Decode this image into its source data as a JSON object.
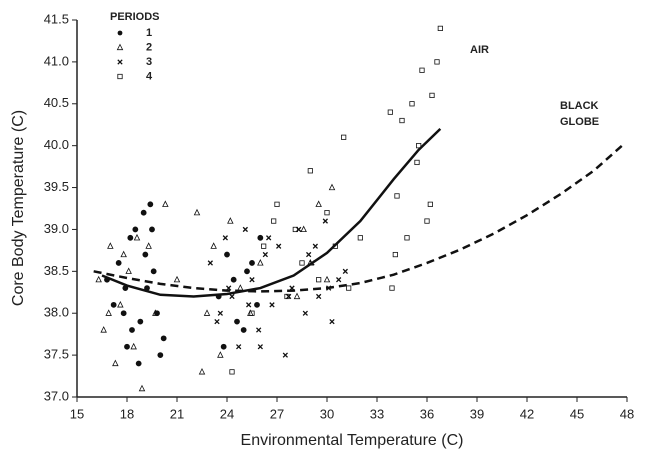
{
  "chart_data": {
    "type": "scatter",
    "x_label": "Environmental Temperature (C)",
    "y_label": "Core Body Temperature (C)",
    "legend_title": "PERIODS",
    "legend": "upper-left",
    "xlim": [
      15,
      48
    ],
    "ylim": [
      37.0,
      41.5
    ],
    "xticks": [
      15,
      18,
      21,
      24,
      27,
      30,
      33,
      36,
      39,
      42,
      45,
      48
    ],
    "yticks": [
      {
        "value": 37,
        "label": "37.0"
      },
      37.5,
      {
        "value": 38,
        "label": "38.0"
      },
      38.5,
      {
        "value": 39,
        "label": "39.0"
      },
      39.5,
      {
        "value": 40,
        "label": "40.0"
      },
      40.5,
      {
        "value": 41,
        "label": "41.0"
      },
      41.5
    ],
    "series": [
      {
        "name": "1",
        "marker": "circle",
        "color": "#111",
        "x": [
          16.8,
          17.2,
          17.5,
          17.8,
          18.0,
          18.2,
          18.5,
          18.7,
          19.0,
          19.2,
          19.4,
          19.6,
          19.8,
          20.0,
          18.3,
          17.9,
          19.1,
          18.8,
          19.5,
          20.2,
          23.5,
          24.0,
          24.6,
          25.2,
          25.8,
          26.0,
          23.8,
          24.4,
          25.0,
          25.5
        ],
        "y": [
          38.4,
          38.1,
          38.6,
          38.0,
          37.6,
          38.9,
          39.0,
          37.4,
          39.2,
          38.3,
          39.3,
          38.5,
          38.0,
          37.5,
          37.8,
          38.3,
          38.7,
          37.9,
          39.0,
          37.7,
          38.2,
          38.7,
          37.9,
          38.5,
          38.1,
          38.9,
          37.6,
          38.4,
          37.8,
          38.6
        ]
      },
      {
        "name": "2",
        "marker": "triangle",
        "color": "#111",
        "x": [
          16.3,
          16.6,
          17.0,
          17.3,
          17.6,
          17.8,
          18.1,
          18.4,
          18.9,
          19.3,
          19.7,
          20.3,
          21.0,
          22.2,
          22.5,
          22.8,
          23.2,
          23.6,
          24.2,
          24.8,
          25.4,
          26.0,
          28.2,
          28.6,
          29.0,
          29.5,
          30.0,
          30.3,
          16.9,
          18.6
        ],
        "y": [
          38.4,
          37.8,
          38.8,
          37.4,
          38.1,
          38.7,
          38.5,
          37.6,
          37.1,
          38.8,
          38.0,
          39.3,
          38.4,
          39.2,
          37.3,
          38.0,
          38.8,
          37.5,
          39.1,
          38.3,
          38.0,
          38.6,
          38.2,
          39.0,
          38.6,
          39.3,
          38.4,
          39.5,
          38.0,
          38.9
        ]
      },
      {
        "name": "3",
        "marker": "cross",
        "color": "#111",
        "x": [
          23.0,
          23.4,
          23.9,
          24.3,
          24.7,
          25.1,
          25.5,
          25.9,
          26.3,
          26.7,
          27.1,
          27.5,
          27.9,
          28.3,
          28.7,
          29.1,
          29.5,
          29.9,
          30.3,
          30.7,
          31.1,
          24.1,
          25.3,
          26.5,
          27.7,
          28.9,
          30.1,
          23.6,
          26.0,
          29.3
        ],
        "y": [
          38.6,
          37.9,
          38.9,
          38.2,
          37.6,
          39.0,
          38.4,
          37.8,
          38.7,
          38.1,
          38.8,
          37.5,
          38.3,
          39.0,
          38.0,
          38.6,
          38.2,
          39.1,
          37.9,
          38.4,
          38.5,
          38.3,
          38.1,
          38.9,
          38.2,
          38.7,
          38.3,
          38.0,
          37.6,
          38.8
        ]
      },
      {
        "name": "4",
        "marker": "square",
        "color": "#111",
        "x": [
          24.3,
          25.5,
          26.2,
          27.0,
          27.6,
          28.1,
          28.5,
          29.0,
          29.5,
          30.0,
          30.5,
          31.0,
          31.3,
          32.0,
          33.8,
          33.9,
          34.2,
          34.5,
          34.8,
          35.1,
          35.4,
          35.7,
          36.0,
          36.3,
          36.6,
          36.8,
          35.5,
          36.2,
          34.1,
          26.8
        ],
        "y": [
          37.3,
          38.0,
          38.8,
          39.3,
          38.2,
          39.0,
          38.6,
          39.7,
          38.4,
          39.2,
          38.8,
          40.1,
          38.3,
          38.9,
          40.4,
          38.3,
          39.4,
          40.3,
          38.9,
          40.5,
          39.8,
          40.9,
          39.1,
          40.6,
          41.0,
          41.4,
          40.0,
          39.3,
          38.7,
          39.1
        ]
      }
    ],
    "curves": [
      {
        "label": [
          "AIR"
        ],
        "style": "solid",
        "x": [
          16.5,
          18,
          20,
          22,
          24,
          26,
          28,
          30,
          32,
          34,
          35.5,
          36.8
        ],
        "y": [
          38.45,
          38.33,
          38.22,
          38.2,
          38.23,
          38.3,
          38.45,
          38.72,
          39.1,
          39.6,
          39.95,
          40.2
        ]
      },
      {
        "label": [
          "BLACK",
          "GLOBE"
        ],
        "style": "dashed",
        "x": [
          16,
          18,
          20,
          22,
          24,
          26,
          28,
          30,
          32,
          34,
          36,
          38,
          40,
          42,
          44,
          46,
          47.7
        ],
        "y": [
          38.5,
          38.42,
          38.35,
          38.3,
          38.27,
          38.26,
          38.27,
          38.3,
          38.36,
          38.46,
          38.6,
          38.76,
          38.95,
          39.17,
          39.42,
          39.7,
          40.0
        ]
      }
    ]
  }
}
